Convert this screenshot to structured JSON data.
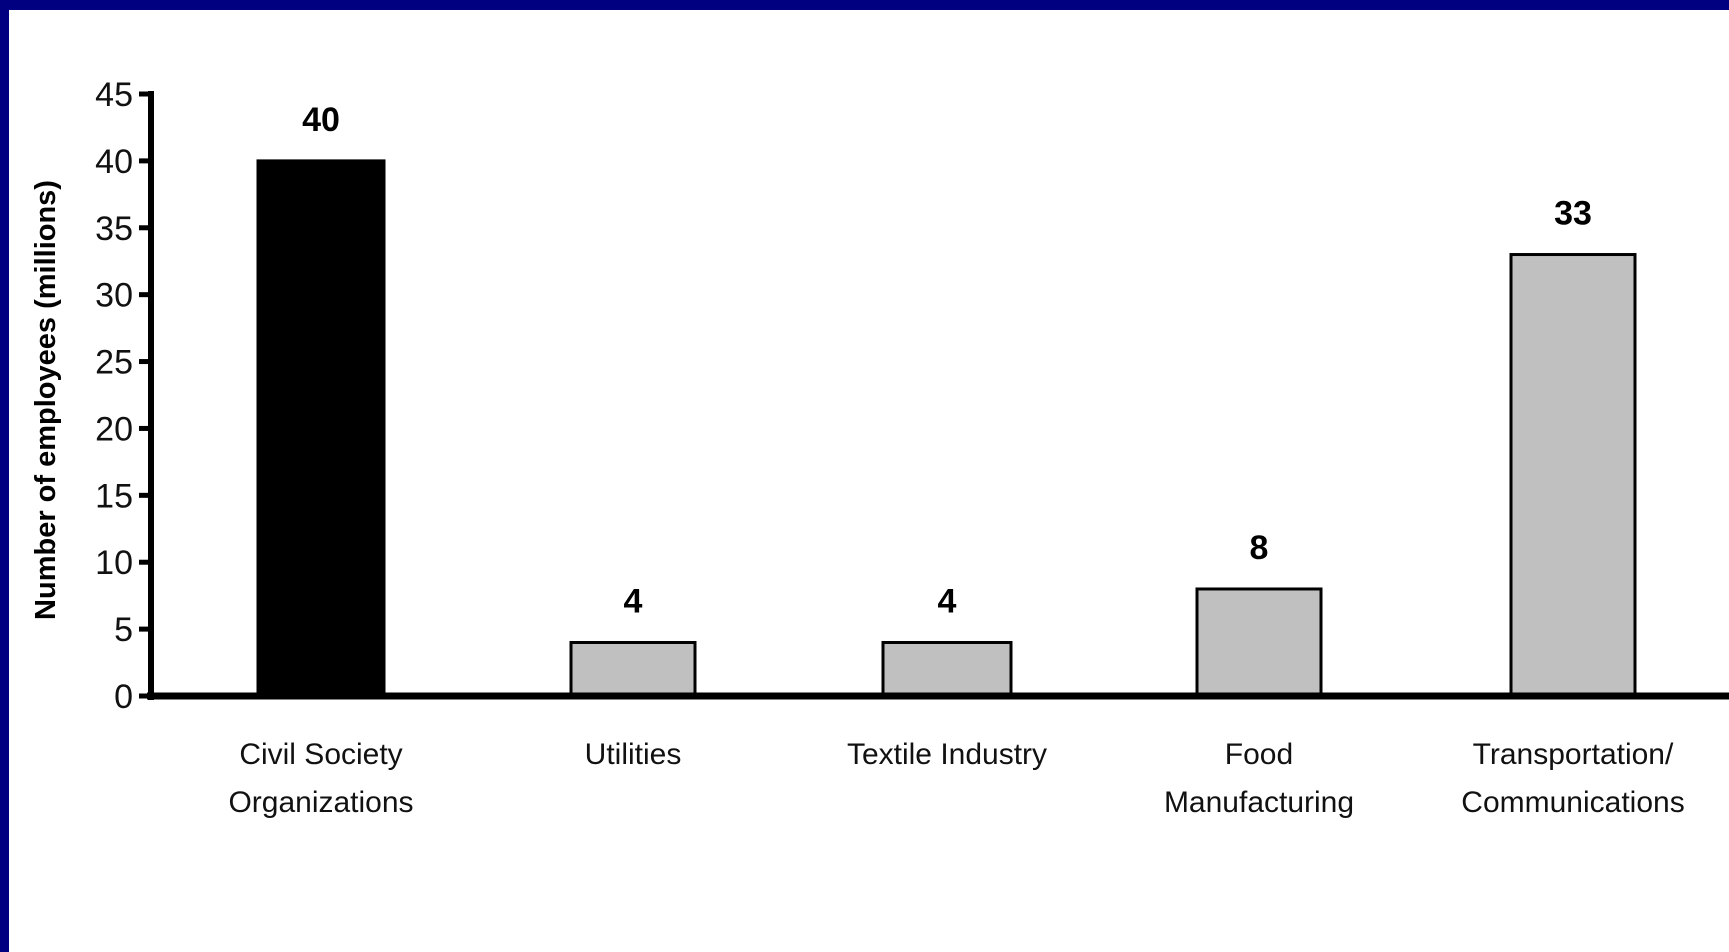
{
  "chart_data": {
    "type": "bar",
    "title": "",
    "xlabel": "",
    "ylabel": "Number of employees (millions)",
    "ylim": [
      0,
      45
    ],
    "yticks": [
      0,
      5,
      10,
      15,
      20,
      25,
      30,
      35,
      40,
      45
    ],
    "grid": false,
    "categories": [
      [
        "Civil Society",
        "Organizations"
      ],
      [
        "Utilities"
      ],
      [
        "Textile Industry"
      ],
      [
        "Food",
        "Manufacturing"
      ],
      [
        "Transportation/",
        "Communications"
      ]
    ],
    "values": [
      40,
      4,
      4,
      8,
      33
    ],
    "data_labels": [
      "40",
      "4",
      "4",
      "8",
      "33"
    ],
    "bar_colors": [
      "#000000",
      "#c0c0c0",
      "#c0c0c0",
      "#c0c0c0",
      "#c0c0c0"
    ]
  },
  "colors": {
    "frame": "#000080",
    "background": "#ffffff",
    "axis": "#000000"
  }
}
